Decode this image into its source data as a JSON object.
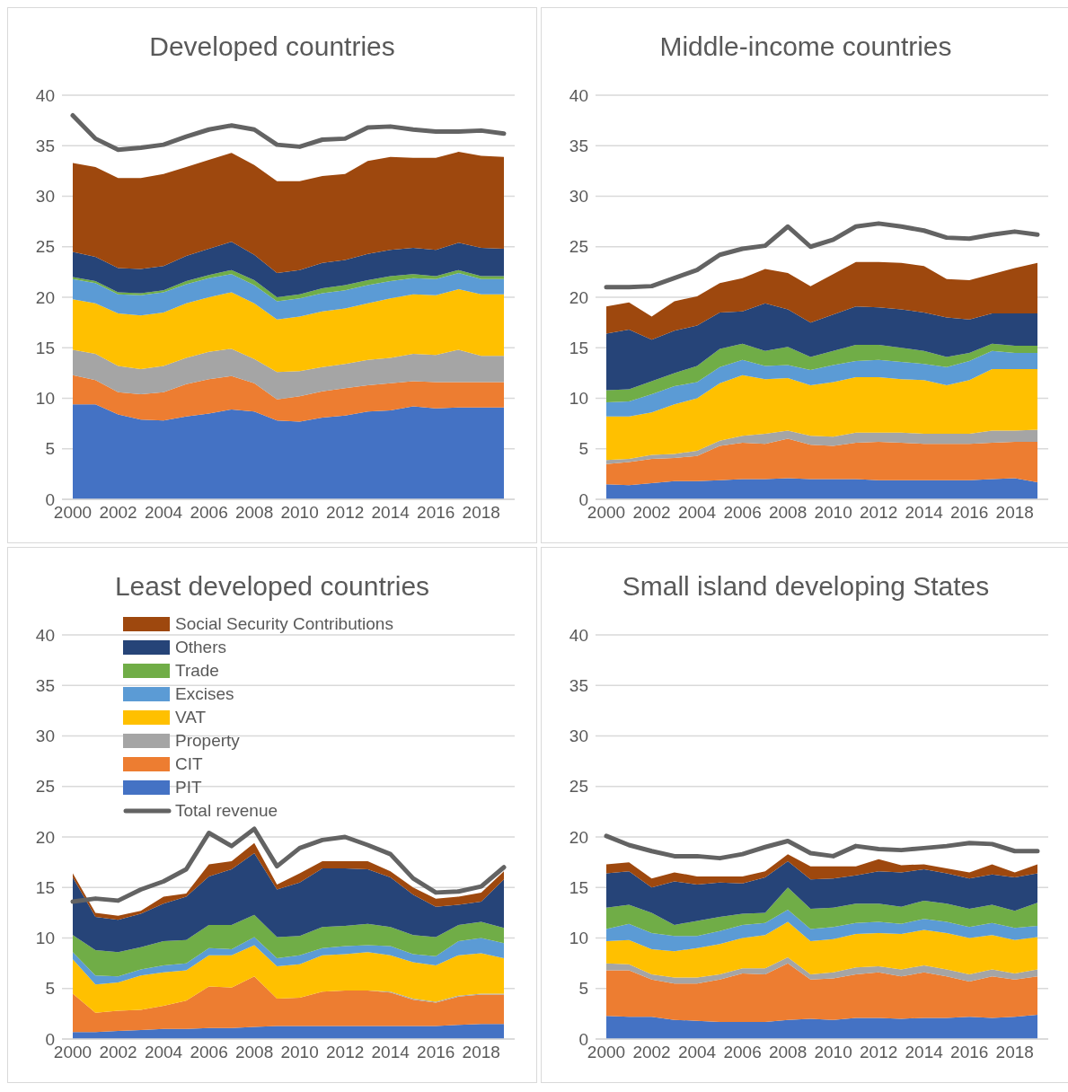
{
  "chart_data": [
    {
      "type": "area",
      "title": "Developed countries",
      "stacked": true,
      "grid": "y",
      "legend": false,
      "ylim": [
        0,
        40
      ],
      "yticks": [
        0,
        5,
        10,
        15,
        20,
        25,
        30,
        35,
        40
      ],
      "categories": [
        "2000",
        null,
        "2002",
        null,
        "2004",
        null,
        "2006",
        null,
        "2008",
        null,
        "2010",
        null,
        "2012",
        null,
        "2014",
        null,
        "2016",
        null,
        "2018",
        null
      ],
      "series": [
        {
          "color": "#4472c4",
          "values": [
            9.4,
            9.4,
            8.4,
            7.9,
            7.8,
            8.2,
            8.5,
            8.9,
            8.7,
            7.8,
            7.7,
            8.1,
            8.3,
            8.7,
            8.8,
            9.2,
            9.0,
            9.1,
            9.1,
            9.1
          ]
        },
        {
          "color": "#ed7d31",
          "values": [
            2.9,
            2.4,
            2.2,
            2.5,
            2.8,
            3.2,
            3.4,
            3.3,
            2.8,
            2.1,
            2.5,
            2.6,
            2.7,
            2.6,
            2.7,
            2.5,
            2.6,
            2.5,
            2.5,
            2.5
          ]
        },
        {
          "color": "#a5a5a5",
          "values": [
            2.5,
            2.6,
            2.6,
            2.5,
            2.6,
            2.6,
            2.7,
            2.7,
            2.4,
            2.7,
            2.5,
            2.4,
            2.4,
            2.5,
            2.5,
            2.7,
            2.7,
            3.2,
            2.6,
            2.6
          ]
        },
        {
          "color": "#ffc000",
          "values": [
            5.0,
            5.0,
            5.2,
            5.3,
            5.3,
            5.4,
            5.4,
            5.6,
            5.5,
            5.2,
            5.4,
            5.5,
            5.5,
            5.6,
            5.9,
            5.9,
            5.9,
            6.0,
            6.1,
            6.1
          ]
        },
        {
          "color": "#5b9bd5",
          "values": [
            2.0,
            2.0,
            1.9,
            2.0,
            2.0,
            1.9,
            1.9,
            1.8,
            1.8,
            1.8,
            1.8,
            1.8,
            1.8,
            1.8,
            1.7,
            1.6,
            1.6,
            1.6,
            1.5,
            1.5
          ]
        },
        {
          "color": "#70ad47",
          "values": [
            0.2,
            0.2,
            0.2,
            0.2,
            0.2,
            0.3,
            0.3,
            0.4,
            0.5,
            0.4,
            0.4,
            0.5,
            0.5,
            0.5,
            0.5,
            0.4,
            0.3,
            0.3,
            0.3,
            0.3
          ]
        },
        {
          "color": "#264478",
          "values": [
            2.5,
            2.4,
            2.4,
            2.4,
            2.4,
            2.5,
            2.6,
            2.8,
            2.5,
            2.4,
            2.4,
            2.5,
            2.5,
            2.6,
            2.6,
            2.6,
            2.6,
            2.7,
            2.8,
            2.7
          ]
        },
        {
          "color": "#9e480e",
          "values": [
            8.8,
            8.9,
            8.9,
            9.0,
            9.1,
            8.8,
            8.8,
            8.8,
            8.9,
            9.1,
            8.8,
            8.6,
            8.5,
            9.2,
            9.2,
            8.9,
            9.1,
            9.0,
            9.1,
            9.1
          ]
        },
        {
          "type": "line",
          "color": "#636363",
          "values": [
            38.0,
            35.7,
            34.6,
            34.8,
            35.1,
            35.9,
            36.6,
            37.0,
            36.6,
            35.1,
            34.9,
            35.6,
            35.7,
            36.8,
            36.9,
            36.6,
            36.4,
            36.4,
            36.5,
            36.2
          ]
        }
      ]
    },
    {
      "type": "area",
      "title": "Middle-income countries",
      "stacked": true,
      "grid": "y",
      "legend": false,
      "ylim": [
        0,
        40
      ],
      "yticks": [
        0,
        5,
        10,
        15,
        20,
        25,
        30,
        35,
        40
      ],
      "categories": [
        "2000",
        null,
        "2002",
        null,
        "2004",
        null,
        "2006",
        null,
        "2008",
        null,
        "2010",
        null,
        "2012",
        null,
        "2014",
        null,
        "2016",
        null,
        "2018",
        null
      ],
      "series": [
        {
          "color": "#4472c4",
          "values": [
            1.5,
            1.4,
            1.6,
            1.8,
            1.8,
            1.9,
            2.0,
            2.0,
            2.1,
            2.0,
            2.0,
            2.0,
            1.9,
            1.9,
            1.9,
            1.9,
            1.9,
            2.0,
            2.1,
            1.7
          ]
        },
        {
          "color": "#ed7d31",
          "values": [
            2.0,
            2.3,
            2.4,
            2.3,
            2.5,
            3.4,
            3.6,
            3.5,
            3.9,
            3.4,
            3.3,
            3.6,
            3.8,
            3.7,
            3.6,
            3.6,
            3.6,
            3.6,
            3.6,
            4.0
          ]
        },
        {
          "color": "#a5a5a5",
          "values": [
            0.4,
            0.3,
            0.4,
            0.4,
            0.5,
            0.5,
            0.7,
            1.0,
            0.8,
            0.9,
            0.9,
            1.0,
            0.9,
            1.0,
            1.0,
            1.0,
            1.0,
            1.2,
            1.1,
            1.2
          ]
        },
        {
          "color": "#ffc000",
          "values": [
            4.3,
            4.2,
            4.2,
            4.9,
            5.2,
            5.7,
            6.0,
            5.4,
            5.2,
            5.0,
            5.4,
            5.5,
            5.5,
            5.3,
            5.3,
            4.8,
            5.3,
            6.1,
            6.1,
            6.0
          ]
        },
        {
          "color": "#5b9bd5",
          "values": [
            1.4,
            1.5,
            1.8,
            1.8,
            1.6,
            1.6,
            1.5,
            1.3,
            1.3,
            1.5,
            1.7,
            1.6,
            1.7,
            1.7,
            1.6,
            1.8,
            1.9,
            1.8,
            1.6,
            1.6
          ]
        },
        {
          "color": "#70ad47",
          "values": [
            1.2,
            1.2,
            1.3,
            1.3,
            1.6,
            1.8,
            1.6,
            1.5,
            1.8,
            1.3,
            1.4,
            1.6,
            1.5,
            1.4,
            1.3,
            1.0,
            0.8,
            0.7,
            0.7,
            0.7
          ]
        },
        {
          "color": "#264478",
          "values": [
            5.6,
            5.9,
            4.1,
            4.2,
            4.0,
            3.6,
            3.2,
            4.7,
            3.7,
            3.4,
            3.6,
            3.8,
            3.7,
            3.8,
            3.8,
            3.9,
            3.3,
            3.0,
            3.2,
            3.2
          ]
        },
        {
          "color": "#9e480e",
          "values": [
            2.7,
            2.7,
            2.3,
            2.9,
            2.9,
            2.9,
            3.3,
            3.4,
            3.6,
            3.6,
            4.0,
            4.4,
            4.5,
            4.6,
            4.6,
            3.8,
            3.9,
            3.9,
            4.5,
            5.0
          ]
        },
        {
          "type": "line",
          "color": "#636363",
          "values": [
            21.0,
            21.0,
            21.1,
            21.9,
            22.7,
            24.2,
            24.8,
            25.1,
            27.0,
            25.0,
            25.7,
            27.0,
            27.3,
            27.0,
            26.6,
            25.9,
            25.8,
            26.2,
            26.5,
            26.2
          ]
        }
      ]
    },
    {
      "type": "area",
      "title": "Least developed countries",
      "stacked": true,
      "grid": "y",
      "legend": "top left",
      "ylim": [
        0,
        40
      ],
      "yticks": [
        0,
        5,
        10,
        15,
        20,
        25,
        30,
        35,
        40
      ],
      "categories": [
        "2000",
        null,
        "2002",
        null,
        "2004",
        null,
        "2006",
        null,
        "2008",
        null,
        "2010",
        null,
        "2012",
        null,
        "2014",
        null,
        "2016",
        null,
        "2018",
        null
      ],
      "series": [
        {
          "name": "PIT",
          "color": "#4472c4",
          "values": [
            0.7,
            0.7,
            0.8,
            0.9,
            1.0,
            1.0,
            1.1,
            1.1,
            1.2,
            1.3,
            1.3,
            1.3,
            1.3,
            1.3,
            1.3,
            1.3,
            1.3,
            1.4,
            1.5,
            1.5
          ]
        },
        {
          "name": "CIT",
          "color": "#ed7d31",
          "values": [
            3.8,
            1.9,
            2.0,
            2.0,
            2.3,
            2.8,
            4.1,
            4.0,
            5.0,
            2.7,
            2.8,
            3.4,
            3.5,
            3.5,
            3.3,
            2.6,
            2.3,
            2.8,
            2.9,
            2.9
          ]
        },
        {
          "name": "Property",
          "color": "#a5a5a5",
          "values": [
            0,
            0,
            0,
            0,
            0,
            0,
            0,
            0,
            0,
            0,
            0,
            0,
            0,
            0,
            0.1,
            0.1,
            0.1,
            0.1,
            0.1,
            0.1
          ]
        },
        {
          "name": "VAT",
          "color": "#ffc000",
          "values": [
            3.4,
            2.8,
            2.8,
            3.4,
            3.3,
            3.0,
            3.1,
            3.2,
            3.1,
            3.2,
            3.3,
            3.6,
            3.6,
            3.8,
            3.6,
            3.6,
            3.6,
            4.0,
            4.0,
            3.5
          ]
        },
        {
          "name": "Excises",
          "color": "#5b9bd5",
          "values": [
            0.7,
            0.9,
            0.6,
            0.6,
            0.7,
            0.7,
            0.7,
            0.6,
            0.8,
            0.8,
            0.9,
            0.7,
            0.8,
            0.7,
            0.9,
            0.8,
            0.9,
            1.4,
            1.5,
            1.5
          ]
        },
        {
          "name": "Trade",
          "color": "#70ad47",
          "values": [
            1.7,
            2.5,
            2.4,
            2.2,
            2.4,
            2.3,
            2.3,
            2.4,
            2.2,
            2.1,
            1.9,
            2.1,
            2.0,
            2.1,
            1.9,
            1.9,
            1.9,
            1.6,
            1.6,
            1.5
          ]
        },
        {
          "name": "Others",
          "color": "#264478",
          "values": [
            5.7,
            3.3,
            3.2,
            3.3,
            3.7,
            4.3,
            4.8,
            5.5,
            6.1,
            4.7,
            5.3,
            5.8,
            5.7,
            5.4,
            4.9,
            4.0,
            3.0,
            2.0,
            2.0,
            4.8
          ]
        },
        {
          "name": "Social Security Contributions",
          "color": "#9e480e",
          "values": [
            0.4,
            0.4,
            0.4,
            0.3,
            0.7,
            0.3,
            1.2,
            0.8,
            1.0,
            0.5,
            0.9,
            0.7,
            0.7,
            0.8,
            0.6,
            0.7,
            0.8,
            0.8,
            0.9,
            0.8
          ]
        },
        {
          "name": "Total revenue",
          "type": "line",
          "color": "#636363",
          "values": [
            13.6,
            13.9,
            13.7,
            14.8,
            15.6,
            16.8,
            20.4,
            19.1,
            20.8,
            17.1,
            18.9,
            19.7,
            20.0,
            19.2,
            18.3,
            15.9,
            14.5,
            14.6,
            15.1,
            17.0
          ]
        }
      ]
    },
    {
      "type": "area",
      "title": "Small island developing States",
      "stacked": true,
      "grid": "y",
      "legend": false,
      "ylim": [
        0,
        40
      ],
      "yticks": [
        0,
        5,
        10,
        15,
        20,
        25,
        30,
        35,
        40
      ],
      "categories": [
        "2000",
        null,
        "2002",
        null,
        "2004",
        null,
        "2006",
        null,
        "2008",
        null,
        "2010",
        null,
        "2012",
        null,
        "2014",
        null,
        "2016",
        null,
        "2018",
        null
      ],
      "series": [
        {
          "color": "#4472c4",
          "values": [
            2.3,
            2.2,
            2.2,
            1.9,
            1.8,
            1.7,
            1.7,
            1.7,
            1.9,
            2.0,
            1.9,
            2.1,
            2.1,
            2.0,
            2.1,
            2.1,
            2.2,
            2.1,
            2.2,
            2.4
          ]
        },
        {
          "color": "#ed7d31",
          "values": [
            4.5,
            4.6,
            3.7,
            3.6,
            3.7,
            4.2,
            4.8,
            4.7,
            5.6,
            3.9,
            4.1,
            4.3,
            4.5,
            4.2,
            4.5,
            4.1,
            3.5,
            4.1,
            3.7,
            3.8
          ]
        },
        {
          "color": "#a5a5a5",
          "values": [
            0.7,
            0.6,
            0.5,
            0.6,
            0.6,
            0.5,
            0.5,
            0.6,
            0.6,
            0.5,
            0.6,
            0.7,
            0.6,
            0.7,
            0.7,
            0.7,
            0.7,
            0.7,
            0.6,
            0.7
          ]
        },
        {
          "color": "#ffc000",
          "values": [
            2.2,
            2.4,
            2.5,
            2.6,
            2.9,
            3.0,
            3.0,
            3.3,
            3.5,
            3.3,
            3.3,
            3.3,
            3.3,
            3.5,
            3.5,
            3.6,
            3.6,
            3.4,
            3.3,
            3.2
          ]
        },
        {
          "color": "#5b9bd5",
          "values": [
            1.2,
            1.6,
            1.6,
            1.5,
            1.2,
            1.3,
            1.3,
            1.2,
            1.2,
            1.2,
            1.2,
            1.1,
            1.1,
            1.0,
            1.1,
            1.1,
            1.1,
            1.2,
            1.2,
            1.1
          ]
        },
        {
          "color": "#70ad47",
          "values": [
            2.1,
            1.9,
            2.0,
            1.1,
            1.5,
            1.4,
            1.1,
            1.0,
            2.2,
            2.0,
            1.9,
            1.9,
            1.8,
            1.7,
            1.8,
            1.8,
            1.8,
            1.8,
            1.7,
            2.3
          ]
        },
        {
          "color": "#264478",
          "values": [
            3.4,
            3.3,
            2.5,
            4.3,
            3.6,
            3.4,
            3.0,
            3.5,
            2.6,
            2.9,
            2.9,
            2.8,
            3.2,
            3.4,
            3.1,
            3.0,
            3.0,
            3.0,
            3.3,
            2.9
          ]
        },
        {
          "color": "#9e480e",
          "values": [
            0.9,
            0.9,
            0.9,
            0.9,
            0.8,
            0.6,
            0.7,
            0.6,
            0.7,
            1.3,
            1.2,
            0.9,
            1.2,
            0.7,
            0.5,
            0.5,
            0.6,
            1.0,
            0.5,
            0.9
          ]
        },
        {
          "type": "line",
          "color": "#636363",
          "values": [
            20.1,
            19.2,
            18.6,
            18.1,
            18.1,
            17.9,
            18.3,
            19.0,
            19.6,
            18.4,
            18.1,
            19.1,
            18.8,
            18.7,
            18.9,
            19.1,
            19.4,
            19.3,
            18.6,
            18.6
          ]
        }
      ]
    }
  ]
}
